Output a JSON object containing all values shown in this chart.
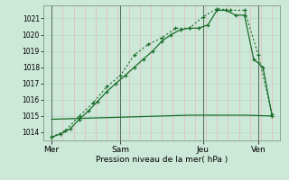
{
  "bg_color": "#cce8d8",
  "grid_color_h": "#b8d8c8",
  "grid_color_v": "#e8b8b8",
  "line_color": "#1a6e2a",
  "ylabel": "Pression niveau de la mer( hPa )",
  "ylim": [
    1013.5,
    1021.8
  ],
  "yticks": [
    1014,
    1015,
    1016,
    1017,
    1018,
    1019,
    1020,
    1021
  ],
  "day_labels": [
    "| Mer",
    "Sam",
    "Jeu",
    "| Ven"
  ],
  "day_positions": [
    0,
    2.5,
    5.5,
    7.5
  ],
  "series1_x": [
    0,
    0.33,
    0.67,
    1.0,
    1.33,
    1.67,
    2.0,
    2.33,
    2.67,
    3.0,
    3.33,
    3.67,
    4.0,
    4.33,
    4.67,
    5.0,
    5.33,
    5.67,
    6.0,
    6.33,
    6.67,
    7.0,
    7.33,
    7.67,
    8.0
  ],
  "series1_y": [
    1013.7,
    1013.9,
    1014.2,
    1014.8,
    1015.3,
    1015.9,
    1016.5,
    1017.0,
    1017.5,
    1018.0,
    1018.5,
    1019.0,
    1019.6,
    1020.0,
    1020.3,
    1020.4,
    1020.4,
    1020.6,
    1021.5,
    1021.5,
    1021.2,
    1021.2,
    1018.5,
    1018.0,
    1015.0
  ],
  "series2_x": [
    0,
    0.5,
    1.0,
    1.5,
    2.0,
    2.5,
    3.0,
    3.5,
    4.0,
    4.5,
    5.0,
    5.5,
    6.0,
    6.5,
    7.0,
    7.5,
    8.0
  ],
  "series2_y": [
    1013.7,
    1014.1,
    1015.0,
    1015.8,
    1016.8,
    1017.5,
    1018.75,
    1019.4,
    1019.8,
    1020.4,
    1020.4,
    1021.1,
    1021.6,
    1021.5,
    1021.5,
    1018.75,
    1015.1
  ],
  "series3_x": [
    0,
    1,
    2,
    3,
    4,
    5,
    6,
    7,
    8
  ],
  "series3_y": [
    1014.8,
    1014.85,
    1014.9,
    1014.95,
    1015.0,
    1015.05,
    1015.05,
    1015.05,
    1015.0
  ],
  "vline_positions": [
    0,
    2.5,
    5.5,
    7.5
  ],
  "figsize": [
    3.2,
    2.0
  ],
  "dpi": 100
}
